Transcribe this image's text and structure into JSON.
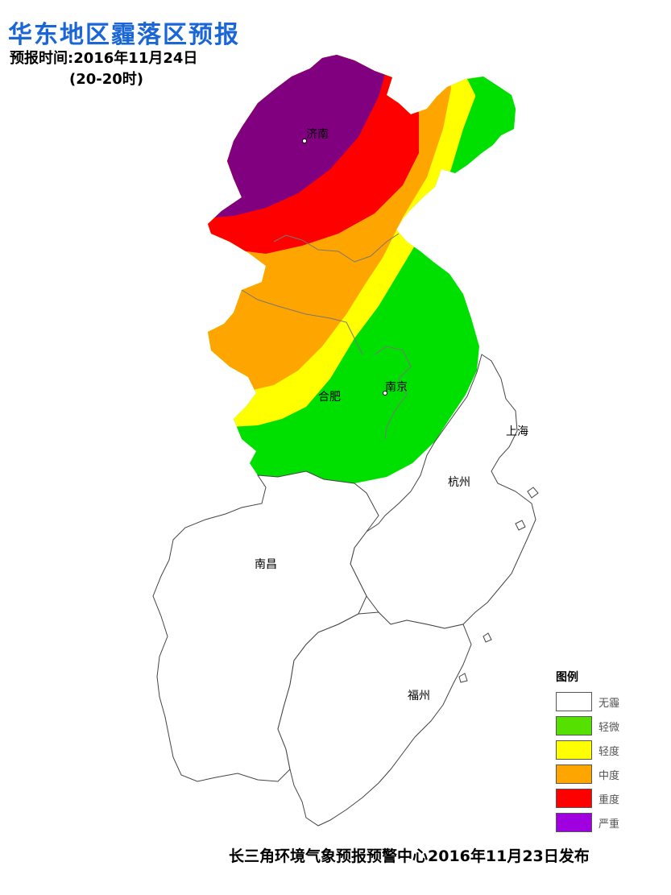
{
  "header": {
    "title": "华东地区霾落区预报",
    "forecast_time": "预报时间:2016年11月24日",
    "time_range": "(20-20时)"
  },
  "map": {
    "cities": [
      {
        "name": "济南",
        "marker": true
      },
      {
        "name": "南京",
        "marker": true
      },
      {
        "name": "合肥",
        "marker": false
      },
      {
        "name": "上海",
        "marker": false
      },
      {
        "name": "杭州",
        "marker": false
      },
      {
        "name": "南昌",
        "marker": false
      },
      {
        "name": "福州",
        "marker": false
      }
    ]
  },
  "legend": {
    "title": "图例",
    "items": [
      {
        "label": "无霾",
        "color": "#ffffff"
      },
      {
        "label": "轻微",
        "color": "#55e000"
      },
      {
        "label": "轻度",
        "color": "#ffff00"
      },
      {
        "label": "中度",
        "color": "#ffa500"
      },
      {
        "label": "重度",
        "color": "#ff0000"
      },
      {
        "label": "严重",
        "color": "#a000e0"
      }
    ]
  },
  "map_colors": {
    "none": "#ffffff",
    "slight": "#00e000",
    "light": "#ffff00",
    "moderate": "#ffa500",
    "heavy": "#ff0000",
    "severe": "#800080"
  },
  "footer": {
    "issuer": "长三角环境气象预报预警中心2016年11月23日发布"
  }
}
